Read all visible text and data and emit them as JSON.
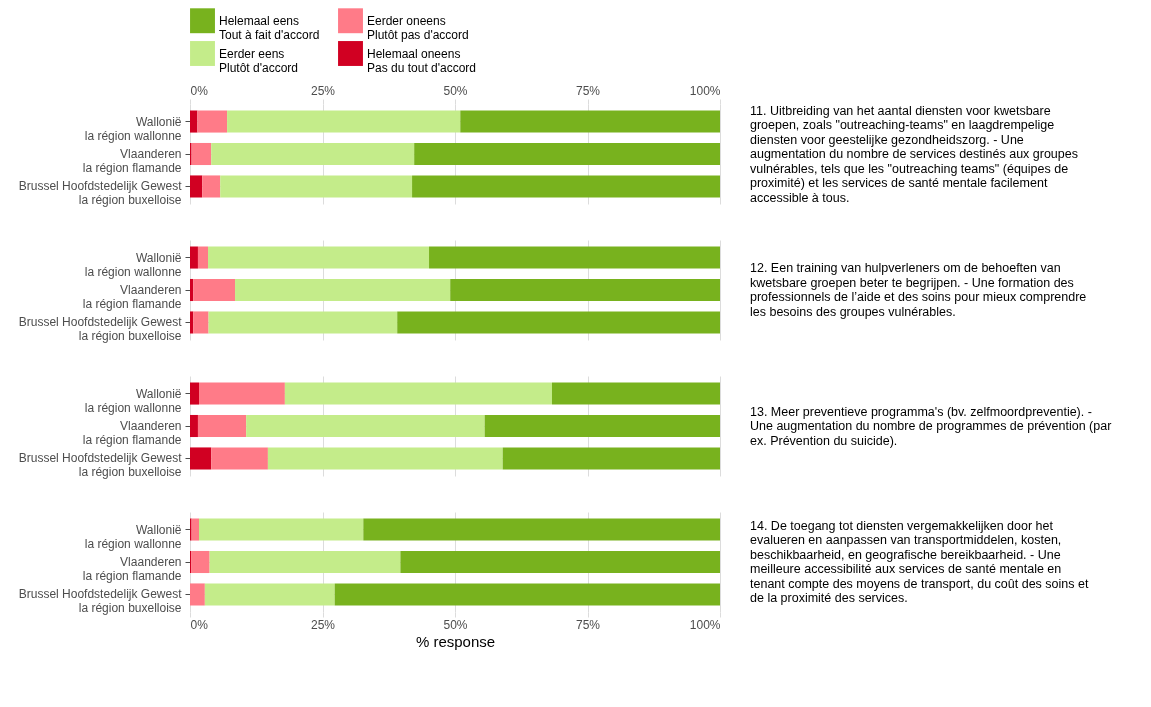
{
  "chart_data": [
    {
      "type": "bar",
      "orientation": "horizontal",
      "stacked": true,
      "legend": "top",
      "grid": true,
      "annotations": [
        "11. Uitbreiding van het aantal diensten voor kwetsbare groepen, zoals \"outreaching-teams\" en laagdrempelige diensten voor geestelijke gezondheidszorg. - Une augmentation du nombre de services destinés aux groupes vulnérables, tels que les \"outreaching teams\" (équipes de proximité) et les services de santé mentale facilement accessible à tous."
      ],
      "categories": [
        "Wallonië\nla région wallonne",
        "Vlaanderen\nla région flamande",
        "Brussel Hoofdstedelijk Gewest\nla région buxelloise"
      ],
      "xlim": [
        0,
        100
      ],
      "xticks": [
        {
          "value": 0,
          "label": "0%"
        },
        {
          "value": 25,
          "label": "25%"
        },
        {
          "value": 50,
          "label": "50%"
        },
        {
          "value": 75,
          "label": "75%"
        },
        {
          "value": 100,
          "label": "100%"
        }
      ],
      "series": [
        {
          "name": "Helemaal oneens\nPas du tout d'accord",
          "color": "#d10022",
          "values": [
            1.4,
            0.3,
            2.3
          ]
        },
        {
          "name": "Eerder oneens\nPlutôt pas d'accord",
          "color": "#ff7b88",
          "values": [
            5.6,
            3.7,
            3.4
          ]
        },
        {
          "name": "Eerder eens\nPlutôt d'accord",
          "color": "#c4ec8a",
          "values": [
            44.0,
            38.3,
            36.2
          ]
        },
        {
          "name": "Helemaal eens\nTout à fait d'accord",
          "color": "#78b21e",
          "values": [
            49.0,
            57.7,
            58.1
          ]
        }
      ]
    },
    {
      "type": "bar",
      "orientation": "horizontal",
      "stacked": true,
      "grid": true,
      "tick_labels": "y",
      "annotations": [
        "12. Een training van hulpverleners om de behoeften van kwetsbare groepen beter te begrijpen. - Une formation des professionnels de l’aide et des soins pour mieux comprendre les besoins des groupes vulnérables."
      ],
      "categories": [
        "Wallonië\nla région wallonne",
        "Vlaanderen\nla région flamande",
        "Brussel Hoofdstedelijk Gewest\nla région buxelloise"
      ],
      "xlim": [
        0,
        100
      ],
      "xticks": [
        {
          "value": 0,
          "label": null
        },
        {
          "value": 25,
          "label": null
        },
        {
          "value": 50,
          "label": null
        },
        {
          "value": 75,
          "label": null
        },
        {
          "value": 100,
          "label": null
        }
      ],
      "series": [
        {
          "color": "#d10022",
          "values": [
            1.5,
            0.6,
            0.6
          ]
        },
        {
          "color": "#ff7b88",
          "values": [
            1.9,
            7.9,
            2.9
          ]
        },
        {
          "color": "#c4ec8a",
          "values": [
            41.7,
            40.6,
            35.6
          ]
        },
        {
          "color": "#78b21e",
          "values": [
            54.9,
            50.9,
            60.9
          ]
        }
      ]
    },
    {
      "type": "bar",
      "orientation": "horizontal",
      "stacked": true,
      "grid": true,
      "tick_labels": "y",
      "annotations": [
        "13. Meer preventieve programma's (bv. zelfmoordpreventie). - Une augmentation du nombre de programmes de prévention (par ex. Prévention du suicide)."
      ],
      "categories": [
        "Wallonië\nla région wallonne",
        "Vlaanderen\nla région flamande",
        "Brussel Hoofdstedelijk Gewest\nla région buxelloise"
      ],
      "xlim": [
        0,
        100
      ],
      "xticks": [
        {
          "value": 0,
          "label": null
        },
        {
          "value": 25,
          "label": null
        },
        {
          "value": 50,
          "label": null
        },
        {
          "value": 75,
          "label": null
        },
        {
          "value": 100,
          "label": null
        }
      ],
      "series": [
        {
          "color": "#d10022",
          "values": [
            1.7,
            1.5,
            4.0
          ]
        },
        {
          "color": "#ff7b88",
          "values": [
            16.2,
            9.1,
            10.7
          ]
        },
        {
          "color": "#c4ec8a",
          "values": [
            50.4,
            45.0,
            44.3
          ]
        },
        {
          "color": "#78b21e",
          "values": [
            31.7,
            44.4,
            41.0
          ]
        }
      ]
    },
    {
      "type": "bar",
      "orientation": "horizontal",
      "stacked": true,
      "grid": true,
      "xlabel": "% response",
      "annotations": [
        "14. De toegang tot diensten vergemakkelijken door het evalueren en aanpassen van transportmiddelen, kosten, beschikbaarheid, en geografische bereikbaarheid. - Une meilleure accessibilité aux services de santé mentale en tenant compte des moyens de transport, du coût des soins et de la proximité des services."
      ],
      "categories": [
        "Wallonië\nla région wallonne",
        "Vlaanderen\nla région flamande",
        "Brussel Hoofdstedelijk Gewest\nla région buxelloise"
      ],
      "xlim": [
        0,
        100
      ],
      "xticks": [
        {
          "value": 0,
          "label": "0%"
        },
        {
          "value": 25,
          "label": "25%"
        },
        {
          "value": 50,
          "label": "50%"
        },
        {
          "value": 75,
          "label": "75%"
        },
        {
          "value": 100,
          "label": "100%"
        }
      ],
      "series": [
        {
          "color": "#d10022",
          "values": [
            0.3,
            0.2,
            0
          ]
        },
        {
          "color": "#ff7b88",
          "values": [
            1.4,
            3.5,
            2.8
          ]
        },
        {
          "color": "#c4ec8a",
          "values": [
            31.0,
            36.0,
            24.5
          ]
        },
        {
          "color": "#78b21e",
          "values": [
            67.3,
            60.3,
            72.7
          ]
        }
      ]
    }
  ]
}
